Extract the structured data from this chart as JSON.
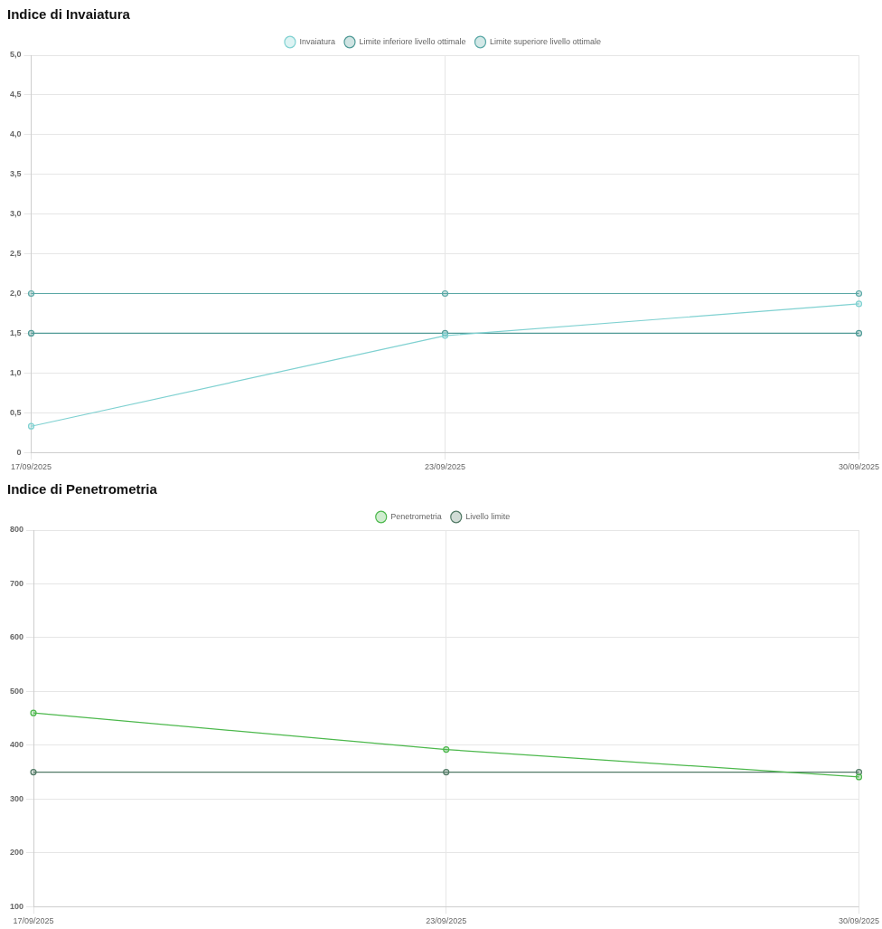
{
  "chart_data": [
    {
      "type": "line",
      "title": "Indice di Invaiatura",
      "categories": [
        "17/09/2025",
        "23/09/2025",
        "30/09/2025"
      ],
      "series": [
        {
          "name": "Invaiatura",
          "color": "#7fd1d1",
          "values": [
            0.33,
            1.47,
            1.87
          ]
        },
        {
          "name": "Limite inferiore livello ottimale",
          "color": "#4f9a96",
          "values": [
            1.5,
            1.5,
            1.5
          ]
        },
        {
          "name": "Limite superiore livello ottimale",
          "color": "#5aa8a6",
          "values": [
            2.0,
            2.0,
            2.0
          ]
        }
      ],
      "ylim": [
        0,
        5
      ],
      "yticks": [
        0,
        {
          "value": 0.5,
          "label": "0,5"
        },
        {
          "value": 1,
          "label": "1,0"
        },
        {
          "value": 1.5,
          "label": "1,5"
        },
        {
          "value": 2,
          "label": "2,0"
        },
        {
          "value": 2.5,
          "label": "2,5"
        },
        {
          "value": 3,
          "label": "3,0"
        },
        {
          "value": 3.5,
          "label": "3,5"
        },
        {
          "value": 4,
          "label": "4,0"
        },
        {
          "value": 4.5,
          "label": "4,5"
        },
        {
          "value": 5,
          "label": "5,0"
        }
      ],
      "grid": true,
      "legend": "top",
      "marker": "circle",
      "line_style": "solid"
    },
    {
      "type": "line",
      "title": "Indice di Penetrometria",
      "categories": [
        "17/09/2025",
        "23/09/2025",
        "30/09/2025"
      ],
      "series": [
        {
          "name": "Penetrometria",
          "color": "#4cb84c",
          "values": [
            460,
            392,
            341
          ]
        },
        {
          "name": "Livello limite",
          "color": "#527a66",
          "values": [
            350,
            350,
            350
          ]
        }
      ],
      "ylim": [
        100,
        800
      ],
      "yticks": [
        100,
        200,
        300,
        400,
        500,
        600,
        700,
        800
      ],
      "grid": true,
      "legend": "top",
      "marker": "circle",
      "line_style": "solid"
    }
  ]
}
